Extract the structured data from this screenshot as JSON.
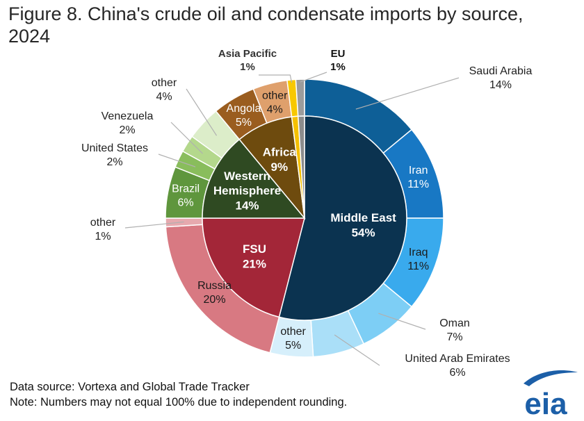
{
  "title": "Figure 8. China's crude oil and condensate imports by source, 2024",
  "footer": {
    "source": "Data source: Vortexa and Global Trade Tracker",
    "note": "Note: Numbers may not equal 100% due to independent rounding."
  },
  "logo": {
    "text": "eia",
    "color": "#1c5fa8"
  },
  "chart_data": {
    "type": "pie",
    "subtype": "nested-donut",
    "inner_ring": [
      {
        "label": "Middle East",
        "value": 54,
        "display": "54%",
        "color": "#0b3350"
      },
      {
        "label": "FSU",
        "value": 21,
        "display": "21%",
        "color": "#a32638"
      },
      {
        "label": "Western Hemisphere",
        "label_lines": [
          "Western",
          "Hemisphere"
        ],
        "value": 14,
        "display": "14%",
        "color": "#2f4a22"
      },
      {
        "label": "Africa",
        "value": 9,
        "display": "9%",
        "color": "#6e4b0e"
      },
      {
        "label": "Asia Pacific",
        "value": 1,
        "display": "1%",
        "color": "#f5c000"
      },
      {
        "label": "EU",
        "value": 1,
        "display": "1%",
        "color": "#8c8c8c"
      }
    ],
    "outer_ring": [
      {
        "label": "Saudi Arabia",
        "value": 14,
        "display": "14%",
        "color": "#0e5f97",
        "group": "Middle East"
      },
      {
        "label": "Iran",
        "value": 11,
        "display": "11%",
        "color": "#1878c4",
        "group": "Middle East"
      },
      {
        "label": "Iraq",
        "value": 11,
        "display": "11%",
        "color": "#39aaed",
        "group": "Middle East"
      },
      {
        "label": "Oman",
        "value": 7,
        "display": "7%",
        "color": "#7dcef5",
        "group": "Middle East"
      },
      {
        "label": "United Arab Emirates",
        "value": 6,
        "display": "6%",
        "color": "#aadff8",
        "group": "Middle East"
      },
      {
        "label": "other",
        "value": 5,
        "display": "5%",
        "color": "#d6effb",
        "group": "Middle East"
      },
      {
        "label": "Russia",
        "value": 20,
        "display": "20%",
        "color": "#d87982",
        "group": "FSU"
      },
      {
        "label": "other",
        "value": 1,
        "display": "1%",
        "color": "#e6a9ae",
        "group": "FSU"
      },
      {
        "label": "Brazil",
        "value": 6,
        "display": "6%",
        "color": "#5f963d",
        "group": "Western Hemisphere"
      },
      {
        "label": "United States",
        "value": 2,
        "display": "2%",
        "color": "#89bd5c",
        "group": "Western Hemisphere"
      },
      {
        "label": "Venezuela",
        "value": 2,
        "display": "2%",
        "color": "#b4d88c",
        "group": "Western Hemisphere"
      },
      {
        "label": "other",
        "value": 4,
        "display": "4%",
        "color": "#dcedc9",
        "group": "Western Hemisphere"
      },
      {
        "label": "Angola",
        "value": 5,
        "display": "5%",
        "color": "#9a5d1f",
        "group": "Africa"
      },
      {
        "label": "other",
        "value": 4,
        "display": "4%",
        "color": "#dfa06c",
        "group": "Africa"
      },
      {
        "label": "Asia Pacific",
        "value": 1,
        "display": "1%",
        "color": "#f8c800",
        "group": "Asia Pacific"
      },
      {
        "label": "EU",
        "value": 1,
        "display": "1%",
        "color": "#9c9c9c",
        "group": "EU"
      }
    ]
  }
}
